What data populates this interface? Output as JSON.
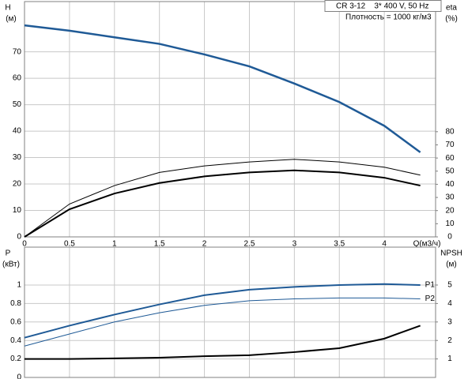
{
  "chart_data": [
    {
      "type": "line",
      "annotations": [
        "CR 3-12    3* 400 V, 50 Hz",
        "Плотность = 1000 кг/м3"
      ],
      "x_label": "Q(м3/ч)",
      "y_label": "H",
      "y_unit": "(м)",
      "y2_label": "eta",
      "y2_unit": "(%)",
      "x": [
        0,
        0.5,
        1,
        1.5,
        2,
        2.5,
        3,
        3.5,
        4,
        4.4
      ],
      "xlim": [
        0,
        4.57
      ],
      "xticks": [
        0,
        0.5,
        1,
        1.5,
        2,
        2.5,
        3,
        3.5,
        4
      ],
      "ylim": [
        0,
        89
      ],
      "yticks": [
        0,
        10,
        20,
        30,
        40,
        50,
        60,
        70
      ],
      "y2lim": [
        0,
        179
      ],
      "y2ticks": [
        0,
        10,
        20,
        30,
        40,
        50,
        60,
        70,
        80
      ],
      "grid": true,
      "series": [
        {
          "color": "#1f5a96",
          "values": [
            80,
            78,
            75.5,
            73,
            69,
            64.5,
            58,
            51,
            42,
            32
          ]
        },
        {
          "color": "#000000",
          "axis": "y2",
          "values": [
            0,
            25,
            39,
            49,
            54,
            57,
            59,
            57,
            53,
            47
          ]
        },
        {
          "color": "#000000",
          "axis": "y2",
          "values": [
            0,
            21,
            33,
            41,
            46,
            49,
            50.6,
            49,
            45,
            39
          ]
        }
      ]
    },
    {
      "type": "line",
      "y_label": "P",
      "y_unit": "(кВт)",
      "y2_label": "NPSH",
      "y2_unit": "(м)",
      "x": [
        0,
        0.5,
        1,
        1.5,
        2,
        2.5,
        3,
        3.5,
        4,
        4.4
      ],
      "xlim": [
        0,
        4.57
      ],
      "xticks": [
        0,
        0.5,
        1,
        1.5,
        2,
        2.5,
        3,
        3.5,
        4
      ],
      "ylim": [
        0,
        1.41
      ],
      "yticks": [
        0,
        0.2,
        0.4,
        0.6,
        0.8,
        1
      ],
      "y2lim": [
        0,
        7.05
      ],
      "y2ticks": [
        1,
        2,
        3,
        4,
        5
      ],
      "grid": true,
      "series": [
        {
          "name": "P1",
          "color": "#1f5a96",
          "values": [
            0.43,
            0.56,
            0.68,
            0.79,
            0.89,
            0.95,
            0.98,
            1.0,
            1.01,
            1.0
          ]
        },
        {
          "name": "P2",
          "color": "#1f5a96",
          "values": [
            0.34,
            0.47,
            0.6,
            0.7,
            0.78,
            0.83,
            0.85,
            0.86,
            0.86,
            0.85
          ]
        },
        {
          "color": "#000000",
          "axis": "y2",
          "values": [
            1,
            1,
            1.03,
            1.07,
            1.15,
            1.2,
            1.37,
            1.58,
            2.1,
            2.8
          ]
        }
      ]
    }
  ]
}
